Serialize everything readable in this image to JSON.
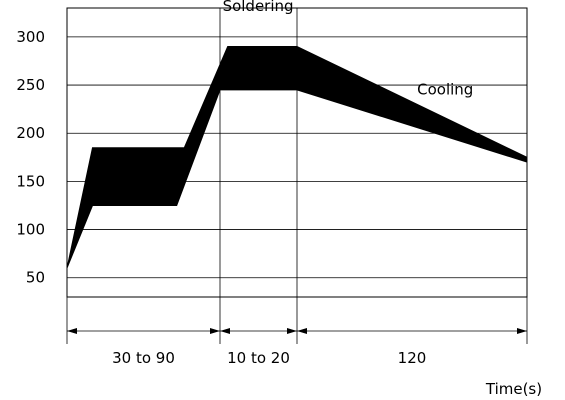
{
  "chart_data": {
    "type": "area",
    "title": "",
    "xlabel": "Time(s)",
    "ylabel": "",
    "ylim": [
      30,
      330
    ],
    "yticks": [
      50,
      100,
      150,
      200,
      250,
      300
    ],
    "xlim": [
      0,
      180
    ],
    "time_segments": [
      {
        "label": "30 to 90",
        "start": 0,
        "end": 60
      },
      {
        "label": "10 to 20",
        "start": 60,
        "end": 90
      },
      {
        "label": "120",
        "start": 90,
        "end": 180
      }
    ],
    "series": [
      {
        "upper": {
          "x": [
            0,
            10,
            46,
            63,
            90,
            180
          ],
          "y": [
            60,
            185,
            185,
            290,
            290,
            175
          ]
        },
        "lower": {
          "x": [
            0,
            10,
            43,
            60,
            90,
            180
          ],
          "y": [
            60,
            125,
            125,
            245,
            245,
            170
          ]
        }
      }
    ],
    "annotations": [
      {
        "text": "Soldering",
        "x": 61,
        "y": 327
      },
      {
        "text": "Cooling",
        "x": 137,
        "y": 240
      }
    ],
    "grid": true,
    "fill_color": "#000000",
    "grid_color": "#000000"
  }
}
